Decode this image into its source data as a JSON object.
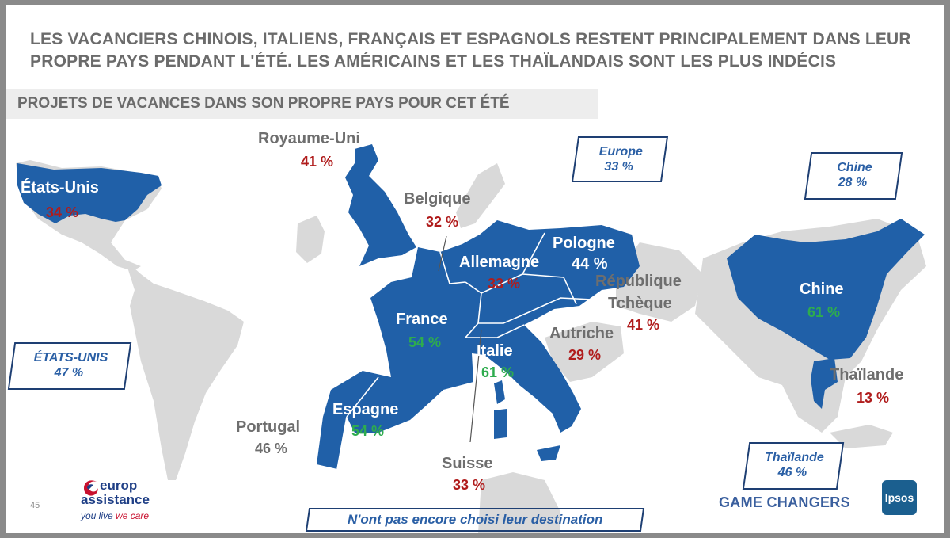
{
  "title": "LES VACANCIERS CHINOIS, ITALIENS, FRANÇAIS ET ESPAGNOLS RESTENT PRINCIPALEMENT DANS LEUR PROPRE PAYS PENDANT L'ÉTÉ. LES AMÉRICAINS ET LES THAÏLANDAIS SONT LES PLUS INDÉCIS",
  "subtitle": "PROJETS DE VACANCES DANS SON PROPRE PAYS POUR CET ÉTÉ",
  "countries": {
    "usa": {
      "name": "États-Unis",
      "value": "34 %"
    },
    "uk": {
      "name": "Royaume-Uni",
      "value": "41 %"
    },
    "belgium": {
      "name": "Belgique",
      "value": "32 %"
    },
    "germany": {
      "name": "Allemagne",
      "value": "33 %"
    },
    "poland": {
      "name": "Pologne",
      "value": "44 %"
    },
    "czech": {
      "name_1": "République",
      "name_2": "Tchèque",
      "value": "41 %"
    },
    "france": {
      "name": "France",
      "value": "54 %"
    },
    "austria": {
      "name": "Autriche",
      "value": "29 %"
    },
    "italy": {
      "name": "Italie",
      "value": "61 %"
    },
    "spain": {
      "name": "Espagne",
      "value": "54 %"
    },
    "portugal": {
      "name": "Portugal",
      "value": "46 %"
    },
    "switzerland": {
      "name": "Suisse",
      "value": "33 %"
    },
    "china": {
      "name": "Chine",
      "value": "61 %"
    },
    "thailand": {
      "name": "Thaïlande",
      "value": "13 %"
    }
  },
  "undecided": {
    "europe": {
      "name": "Europe",
      "value": "33 %"
    },
    "china": {
      "name": "Chine",
      "value": "28 %"
    },
    "usa": {
      "name": "ÉTATS-UNIS",
      "value": "47 %"
    },
    "thailand": {
      "name": "Thaïlande",
      "value": "46 %"
    },
    "note": "N'ont pas encore choisi leur destination"
  },
  "footer": {
    "page_number": "45",
    "brand_line1": "europ",
    "brand_line2": "assistance",
    "brand_tagline_1": "you live",
    "brand_tagline_2": "we care",
    "game_changers": "GAME CHANGERS",
    "ipsos": "Ipsos"
  },
  "colors": {
    "highlight": "#2060a8",
    "land": "#d9d9d9",
    "red": "#b01c1c",
    "green": "#2eac4e"
  }
}
